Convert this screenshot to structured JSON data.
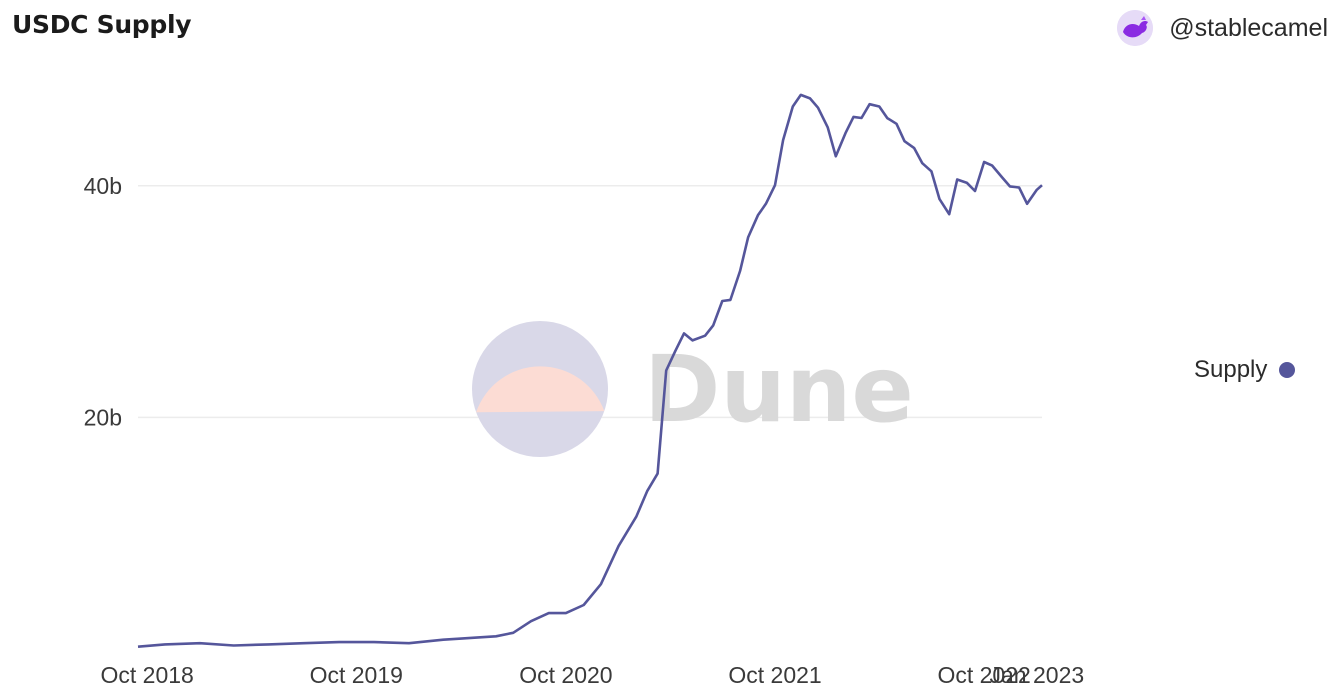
{
  "header": {
    "title": "USDC Supply",
    "author": "@stablecamel"
  },
  "watermark": {
    "text": "Dune"
  },
  "colors": {
    "series": "#55569b",
    "grid": "#ececec",
    "wm_top": "#fcdcd4",
    "wm_bottom": "#d9d8e8"
  },
  "chart_data": {
    "type": "line",
    "title": "USDC Supply",
    "xlabel": "",
    "ylabel": "",
    "x_ticks": [
      "Oct 2018",
      "Oct 2019",
      "Oct 2020",
      "Oct 2021",
      "Oct 2022",
      "Jan 2023"
    ],
    "y_ticks": [
      "20b",
      "40b"
    ],
    "ylim": [
      0,
      49
    ],
    "legend": {
      "position": "right",
      "entries": [
        "Supply"
      ]
    },
    "grid": true,
    "series": [
      {
        "name": "Supply",
        "color": "#55569b",
        "x": [
          "2018-09-15",
          "2018-11-01",
          "2019-01-01",
          "2019-03-01",
          "2019-05-01",
          "2019-07-01",
          "2019-09-01",
          "2019-11-01",
          "2020-01-01",
          "2020-03-01",
          "2020-04-01",
          "2020-05-01",
          "2020-06-01",
          "2020-07-01",
          "2020-08-01",
          "2020-09-01",
          "2020-10-01",
          "2020-11-01",
          "2020-12-01",
          "2021-01-01",
          "2021-02-01",
          "2021-02-20",
          "2021-03-10",
          "2021-03-25",
          "2021-04-10",
          "2021-04-25",
          "2021-05-10",
          "2021-06-01",
          "2021-06-15",
          "2021-07-01",
          "2021-07-15",
          "2021-08-01",
          "2021-08-15",
          "2021-09-01",
          "2021-09-15",
          "2021-10-01",
          "2021-10-15",
          "2021-11-01",
          "2021-11-15",
          "2021-12-01",
          "2021-12-15",
          "2022-01-01",
          "2022-01-15",
          "2022-02-01",
          "2022-02-15",
          "2022-03-01",
          "2022-03-15",
          "2022-04-01",
          "2022-04-15",
          "2022-05-01",
          "2022-05-15",
          "2022-06-01",
          "2022-06-15",
          "2022-07-01",
          "2022-07-15",
          "2022-08-01",
          "2022-08-15",
          "2022-09-01",
          "2022-09-15",
          "2022-10-01",
          "2022-10-15",
          "2022-11-01",
          "2022-11-15",
          "2022-12-01",
          "2022-12-15",
          "2023-01-01",
          "2023-01-10"
        ],
        "values": [
          0.2,
          0.4,
          0.5,
          0.3,
          0.4,
          0.5,
          0.6,
          0.6,
          0.5,
          0.8,
          0.9,
          1.0,
          1.1,
          1.4,
          2.4,
          3.1,
          3.1,
          3.8,
          5.6,
          8.9,
          11.5,
          13.6,
          15.2,
          24.0,
          25.8,
          27.2,
          26.7,
          27.0,
          28.0,
          30.0,
          30.2,
          32.6,
          35.6,
          37.4,
          38.5,
          40.0,
          44.0,
          46.8,
          47.9,
          47.5,
          46.8,
          45.0,
          42.6,
          44.5,
          46.0,
          45.8,
          47.1,
          46.8,
          45.9,
          45.3,
          43.9,
          43.2,
          42.0,
          41.2,
          38.9,
          37.5,
          40.6,
          40.2,
          39.6,
          42.0,
          41.8,
          40.7,
          40.0,
          39.8,
          38.5,
          39.6,
          40.1
        ]
      }
    ]
  }
}
